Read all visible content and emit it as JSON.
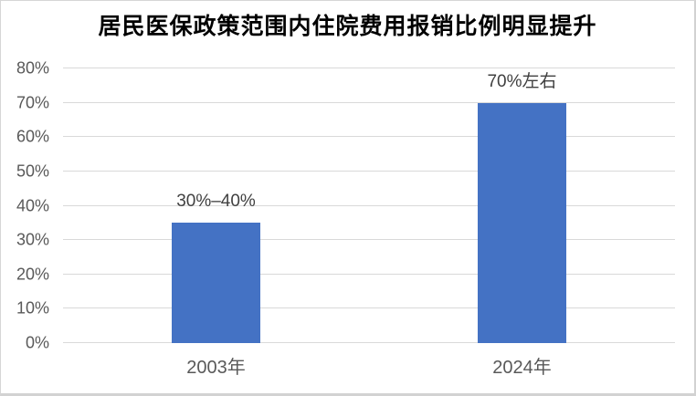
{
  "chart_data": {
    "type": "bar",
    "title": "居民医保政策范围内住院费用报销比例明显提升",
    "categories": [
      "2003年",
      "2024年"
    ],
    "values": [
      35,
      70
    ],
    "data_labels": [
      "30%–40%",
      "70%左右"
    ],
    "xlabel": "",
    "ylabel": "",
    "ylim": [
      0,
      80
    ],
    "y_ticks": [
      {
        "value": 0,
        "label": "0%"
      },
      {
        "value": 10,
        "label": "10%"
      },
      {
        "value": 20,
        "label": "20%"
      },
      {
        "value": 30,
        "label": "30%"
      },
      {
        "value": 40,
        "label": "40%"
      },
      {
        "value": 50,
        "label": "50%"
      },
      {
        "value": 60,
        "label": "60%"
      },
      {
        "value": 70,
        "label": "70%"
      },
      {
        "value": 80,
        "label": "80%"
      }
    ],
    "grid": true,
    "legend": "none",
    "bar_color": "#4472C4",
    "gridline_color": "#d9d9d9",
    "axis_label_color": "#595959",
    "data_label_color": "#404040",
    "title_color": "#000000",
    "background_color": "#ffffff"
  }
}
